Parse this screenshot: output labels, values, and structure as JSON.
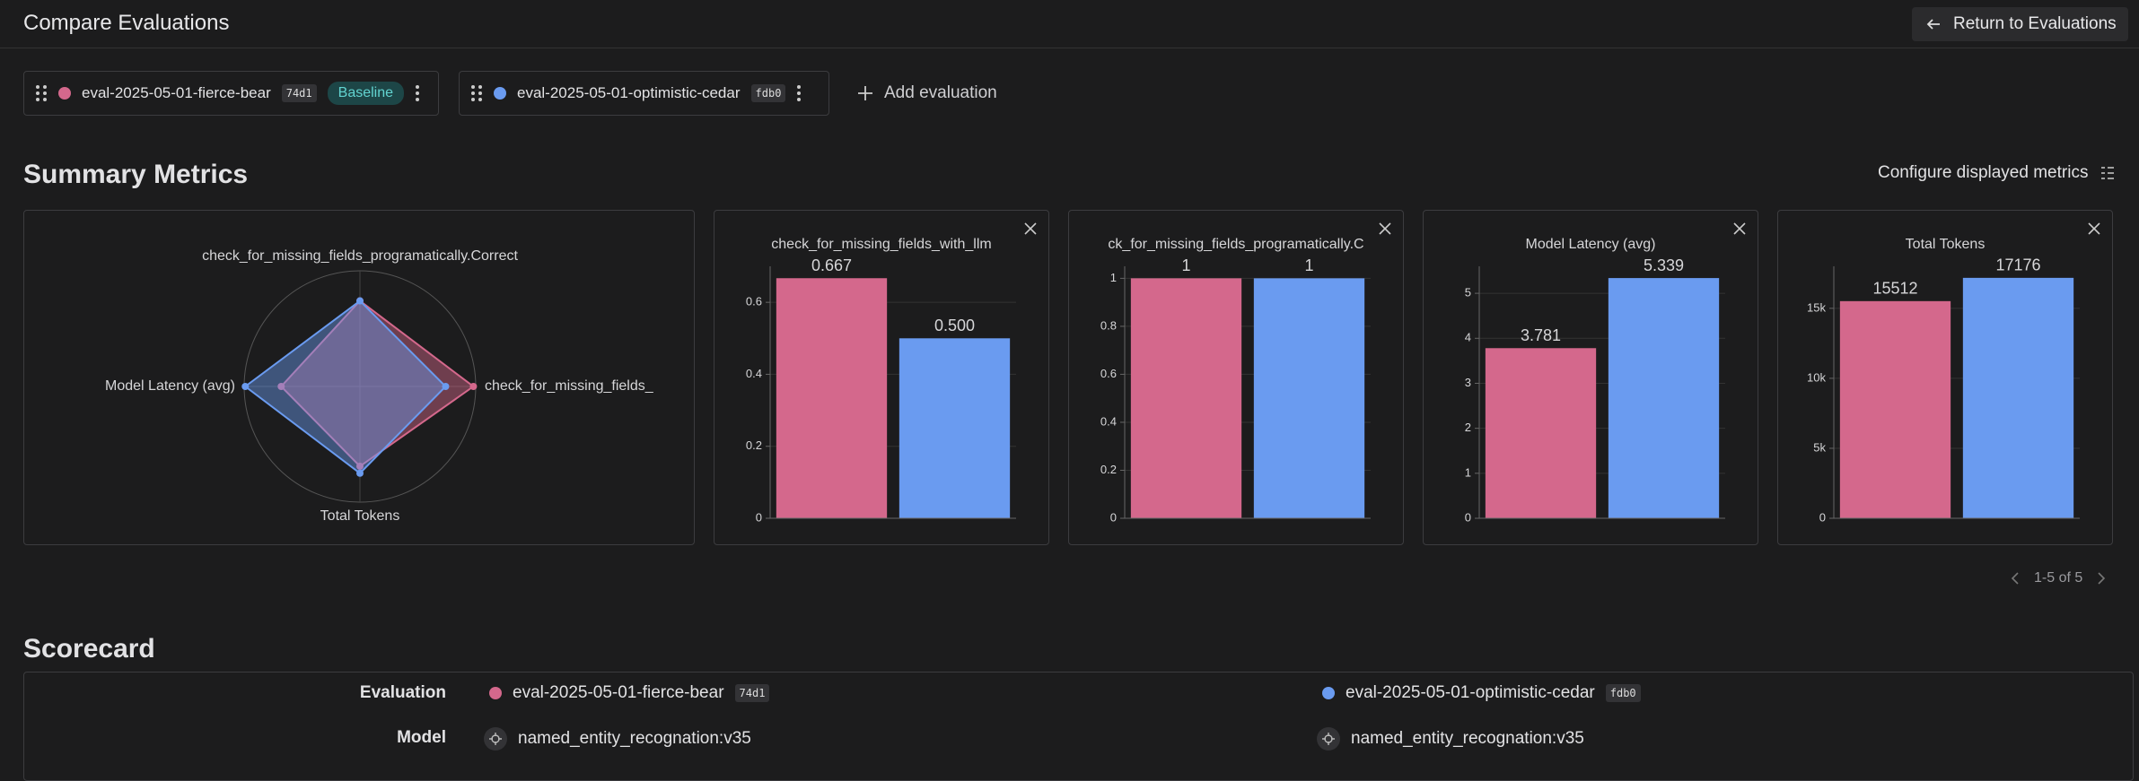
{
  "header": {
    "title": "Compare Evaluations",
    "return_button": "Return to Evaluations"
  },
  "evaluations": [
    {
      "name": "eval-2025-05-01-fierce-bear",
      "hash": "74d1",
      "badge": "Baseline",
      "color": "#d4688c"
    },
    {
      "name": "eval-2025-05-01-optimistic-cedar",
      "hash": "fdb0",
      "color": "#6a9bf0"
    }
  ],
  "add_evaluation": "Add evaluation",
  "summary": {
    "title": "Summary Metrics",
    "configure": "Configure displayed metrics",
    "pagination": "1-5 of 5"
  },
  "charts": [
    {
      "type": "radar",
      "axes": [
        "check_for_missing_fields_programatically.Correct",
        "check_for_missing_fields_",
        "Total Tokens",
        "Model Latency (avg)"
      ],
      "rlim": [
        0,
        1
      ],
      "series": [
        {
          "values": [
            0.74,
            0.98,
            0.69,
            0.68
          ]
        },
        {
          "values": [
            0.74,
            0.74,
            0.75,
            0.99
          ]
        }
      ]
    },
    {
      "type": "bar",
      "title": "check_for_missing_fields_with_llm",
      "values": [
        0.667,
        0.5
      ],
      "value_labels": [
        "0.667",
        "0.500"
      ],
      "ylim": [
        0,
        0.7
      ],
      "yticks": [
        0,
        0.2,
        0.4,
        0.6
      ]
    },
    {
      "type": "bar",
      "title": "ck_for_missing_fields_programatically.C",
      "values": [
        1,
        1
      ],
      "ylim": [
        0,
        1.05
      ],
      "yticks": [
        0,
        0.2,
        0.4,
        0.6,
        0.8,
        1
      ]
    },
    {
      "type": "bar",
      "title": "Model Latency (avg)",
      "values": [
        3.781,
        5.339
      ],
      "ylim": [
        0,
        5.6
      ],
      "yticks": [
        0,
        1,
        2,
        3,
        4,
        5
      ]
    },
    {
      "type": "bar",
      "title": "Total Tokens",
      "values": [
        15512,
        17176
      ],
      "ylim": [
        0,
        18000
      ],
      "yticks": [
        0,
        {
          "value": 5000,
          "label": "5k"
        },
        {
          "value": 10000,
          "label": "10k"
        },
        {
          "value": 15000,
          "label": "15k"
        }
      ]
    }
  ],
  "scorecard": {
    "title": "Scorecard",
    "rows": [
      {
        "label": "Evaluation"
      },
      {
        "label": "Model",
        "values": [
          "named_entity_recognation:v35",
          "named_entity_recognation:v35"
        ]
      }
    ]
  }
}
